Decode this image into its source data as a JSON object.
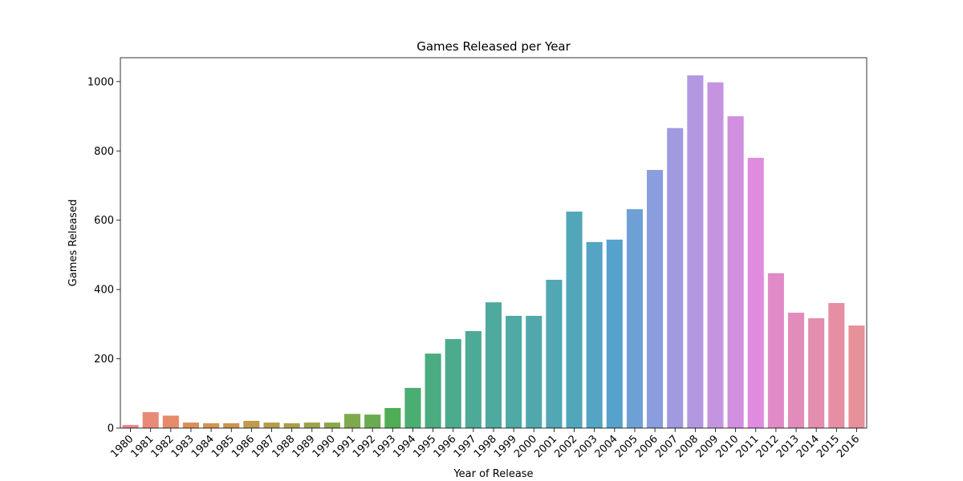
{
  "chart_data": {
    "type": "bar",
    "title": "Games Released per Year",
    "x_label": "Year of Release",
    "y_label": "Games Released",
    "categories": [
      "1980",
      "1981",
      "1982",
      "1983",
      "1984",
      "1985",
      "1986",
      "1987",
      "1988",
      "1989",
      "1990",
      "1991",
      "1992",
      "1993",
      "1994",
      "1995",
      "1996",
      "1997",
      "1998",
      "1999",
      "2000",
      "2001",
      "2002",
      "2003",
      "2004",
      "2005",
      "2006",
      "2007",
      "2008",
      "2009",
      "2010",
      "2011",
      "2012",
      "2013",
      "2014",
      "2015",
      "2016"
    ],
    "values": [
      9,
      46,
      36,
      16,
      14,
      14,
      21,
      16,
      14,
      16,
      16,
      41,
      39,
      58,
      116,
      215,
      257,
      280,
      363,
      324,
      324,
      428,
      625,
      537,
      544,
      632,
      745,
      866,
      1018,
      998,
      900,
      780,
      447,
      333,
      317,
      361,
      296
    ],
    "colors": [
      "#e8888a",
      "#e98a78",
      "#e58b6a",
      "#dd8f58",
      "#d49352",
      "#c9964d",
      "#bf9a4d",
      "#b39d4c",
      "#a8a04c",
      "#9ca34c",
      "#8ea64c",
      "#7ea94d",
      "#6aab4f",
      "#50ad55",
      "#4aad72",
      "#4bac82",
      "#4cab8d",
      "#4daa96",
      "#4ea99e",
      "#4fa9a5",
      "#50a8ac",
      "#51a7b3",
      "#52a6ba",
      "#54a4c3",
      "#57a2cc",
      "#6ea0d6",
      "#8a9ddd",
      "#a19ae0",
      "#b497e1",
      "#c594e1",
      "#d08fdf",
      "#e08be0",
      "#e08bc7",
      "#e28cbb",
      "#e38daf",
      "#e58ea4",
      "#e6909a"
    ],
    "ylim": [
      0,
      1069
    ],
    "yticks": [
      0,
      200,
      400,
      600,
      800,
      1000
    ],
    "grid": false
  }
}
